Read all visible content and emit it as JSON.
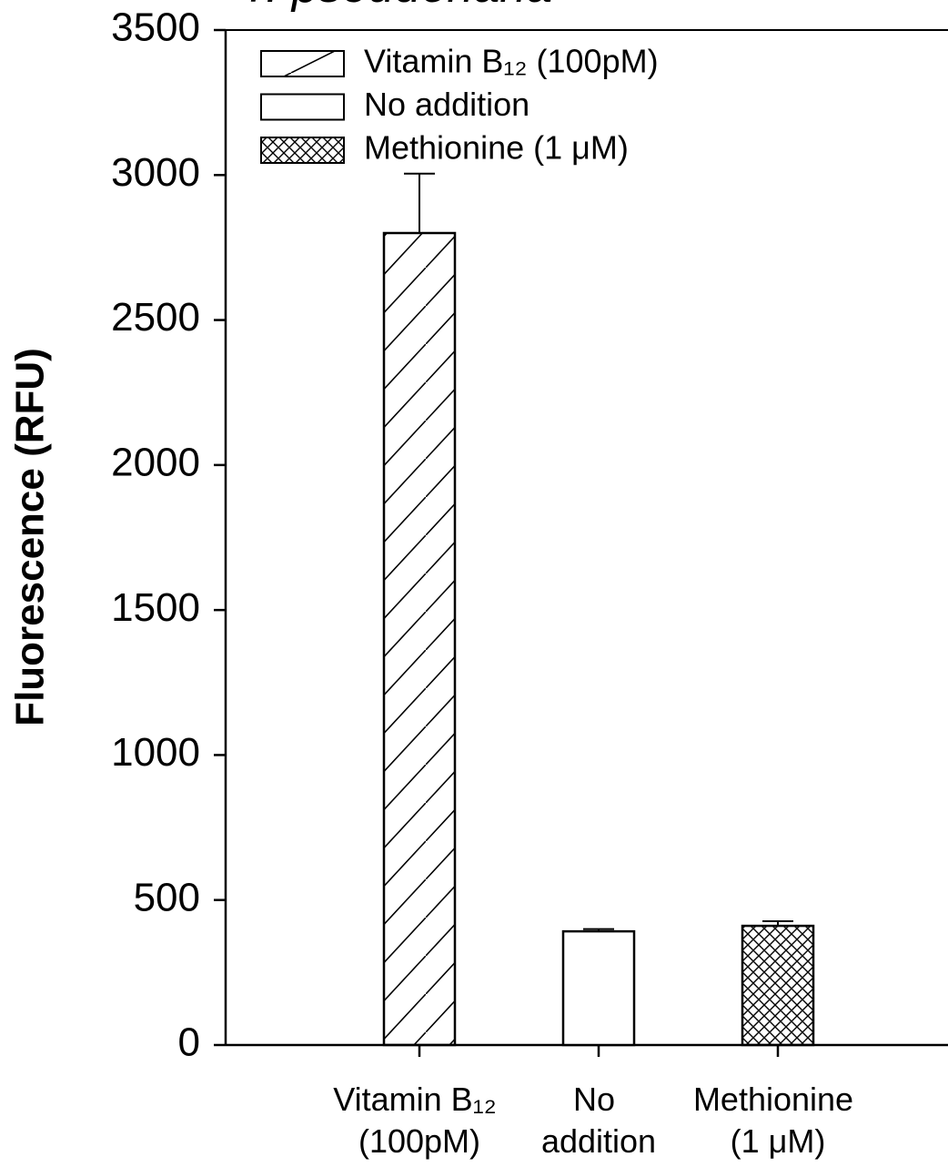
{
  "chart_data": {
    "type": "bar",
    "title": "T. pseudonana",
    "y_label": "Fluorescence (RFU)",
    "categories": [
      "Vitamin B₁₂ (100pM)",
      "No addition",
      "Methionine (1 μM)"
    ],
    "values": [
      2800,
      392,
      411
    ],
    "errors": [
      205,
      8,
      16
    ],
    "patterns": [
      "diagonal",
      "none",
      "crosshatch"
    ],
    "color": "#000000",
    "ylim": [
      0,
      3500
    ],
    "yticks": [
      0,
      500,
      1000,
      1500,
      2000,
      2500,
      3000,
      3500
    ],
    "legend": "upper left"
  }
}
